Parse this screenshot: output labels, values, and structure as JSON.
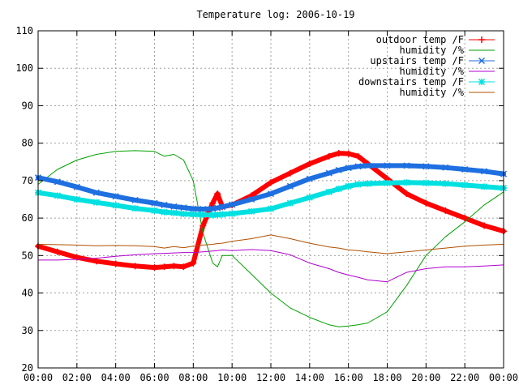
{
  "chart_data": {
    "type": "line",
    "title": "Temperature log: 2006-10-19",
    "xlabel": "",
    "ylabel": "",
    "x_ticks": [
      "00:00",
      "02:00",
      "04:00",
      "06:00",
      "08:00",
      "10:00",
      "12:00",
      "14:00",
      "16:00",
      "18:00",
      "20:00",
      "22:00",
      "00:00"
    ],
    "xlim": [
      0,
      24
    ],
    "ylim": [
      20,
      110
    ],
    "y_ticks": [
      20,
      30,
      40,
      50,
      60,
      70,
      80,
      90,
      100,
      110
    ],
    "grid": true,
    "legend_position": "top-right",
    "x_hours": [
      0,
      1,
      2,
      3,
      4,
      5,
      6,
      6.5,
      7,
      7.5,
      8,
      8.5,
      9,
      9.25,
      9.5,
      10,
      11,
      12,
      13,
      14,
      15,
      15.5,
      16,
      16.5,
      17,
      18,
      19,
      20,
      21,
      22,
      23,
      24
    ],
    "series": [
      {
        "name": "outdoor temp /F",
        "color": "#ff0000",
        "marker": "plus",
        "width": 6,
        "values": [
          52.5,
          51,
          49.5,
          48.5,
          47.8,
          47.2,
          46.8,
          47,
          47.2,
          47,
          48,
          58,
          64,
          66.5,
          63,
          63.5,
          66,
          69.5,
          72,
          74.5,
          76.5,
          77.3,
          77.2,
          76.5,
          74.5,
          70.5,
          66.5,
          64,
          62,
          60,
          58,
          56.5
        ]
      },
      {
        "name": "humidity /%",
        "color": "#00a000",
        "marker": "none",
        "width": 1,
        "values": [
          69,
          73,
          75.5,
          77,
          77.8,
          78,
          77.8,
          76.5,
          77,
          75.5,
          70,
          56,
          48,
          47,
          50,
          50,
          45,
          40,
          36,
          33.5,
          31.5,
          31,
          31.2,
          31.5,
          32,
          35,
          42,
          50,
          55,
          59,
          63.5,
          67
        ]
      },
      {
        "name": "upstairs temp /F",
        "color": "#1e6fe0",
        "marker": "cross",
        "width": 6,
        "values": [
          70.8,
          69.7,
          68.3,
          66.8,
          65.8,
          64.8,
          64,
          63.5,
          63.1,
          62.8,
          62.5,
          62.4,
          62.5,
          62.7,
          63,
          63.6,
          65,
          66.5,
          68.5,
          70.5,
          72,
          72.8,
          73.4,
          73.8,
          74,
          74,
          74,
          73.8,
          73.5,
          73,
          72.5,
          71.8
        ]
      },
      {
        "name": "humidity /%",
        "color": "#b000d0",
        "marker": "none",
        "width": 1,
        "values": [
          48.8,
          48.8,
          49,
          49.3,
          49.8,
          50.2,
          50.5,
          50.6,
          50.7,
          50.8,
          50.8,
          51,
          51.2,
          51.3,
          51.5,
          51.3,
          51.6,
          51.3,
          50.2,
          48,
          46.5,
          45.5,
          44.8,
          44.2,
          43.5,
          43,
          45.5,
          46.5,
          47,
          47,
          47.2,
          47.5
        ]
      },
      {
        "name": "downstairs temp /F",
        "color": "#00e0e0",
        "marker": "star",
        "width": 6,
        "values": [
          66.8,
          66,
          65,
          64.2,
          63.4,
          62.6,
          62,
          61.6,
          61.4,
          61.1,
          61,
          60.9,
          60.8,
          60.9,
          61,
          61.2,
          61.8,
          62.5,
          64,
          65.5,
          67,
          67.8,
          68.5,
          69,
          69.2,
          69.4,
          69.5,
          69.4,
          69.2,
          68.8,
          68.4,
          68
        ]
      },
      {
        "name": "humidity /%",
        "color": "#b05000",
        "marker": "none",
        "width": 1,
        "values": [
          53,
          52.9,
          52.8,
          52.6,
          52.7,
          52.6,
          52.4,
          52,
          52.4,
          52.1,
          52.5,
          52.8,
          53,
          53.2,
          53.3,
          53.8,
          54.5,
          55.5,
          54.5,
          53.3,
          52.3,
          52,
          51.5,
          51.3,
          51,
          50.5,
          51,
          51.5,
          52,
          52.5,
          52.8,
          53
        ]
      }
    ]
  }
}
